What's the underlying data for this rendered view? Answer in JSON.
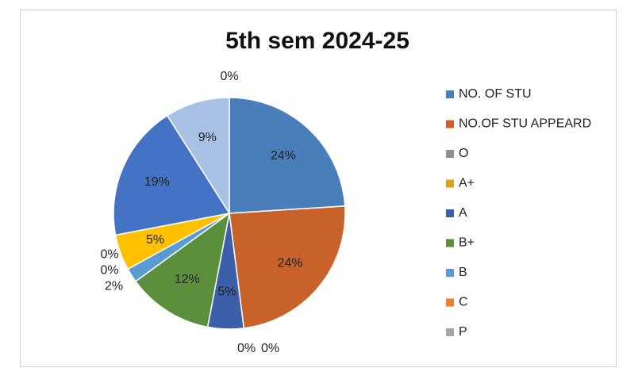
{
  "chart_data": {
    "type": "pie",
    "title": "5th sem  2024-25",
    "categories": [
      "NO. OF STU",
      "NO.OF STU APPEARD",
      "O",
      "A+",
      "A",
      "B+",
      "B",
      "C",
      "P",
      null,
      null,
      null,
      null
    ],
    "values": [
      24,
      24,
      0,
      0,
      5,
      12,
      2,
      0,
      0,
      5,
      19,
      9,
      0
    ],
    "value_labels": [
      "24%",
      "24%",
      "0%",
      "0%",
      "5%",
      "12%",
      "2%",
      "0%",
      "0%",
      "5%",
      "19%",
      "9%",
      "0%"
    ],
    "colors": [
      "#4a7ebb",
      "#c8622a",
      "#8f8f8f",
      "#d9a31a",
      "#3b5fa8",
      "#5b8f3c",
      "#5a9bd5",
      "#ed7d31",
      "#a5a5a5",
      "#ffc000",
      "#4472c4",
      "#a9c1e4",
      "#6a8fc8"
    ],
    "legend": "right"
  }
}
